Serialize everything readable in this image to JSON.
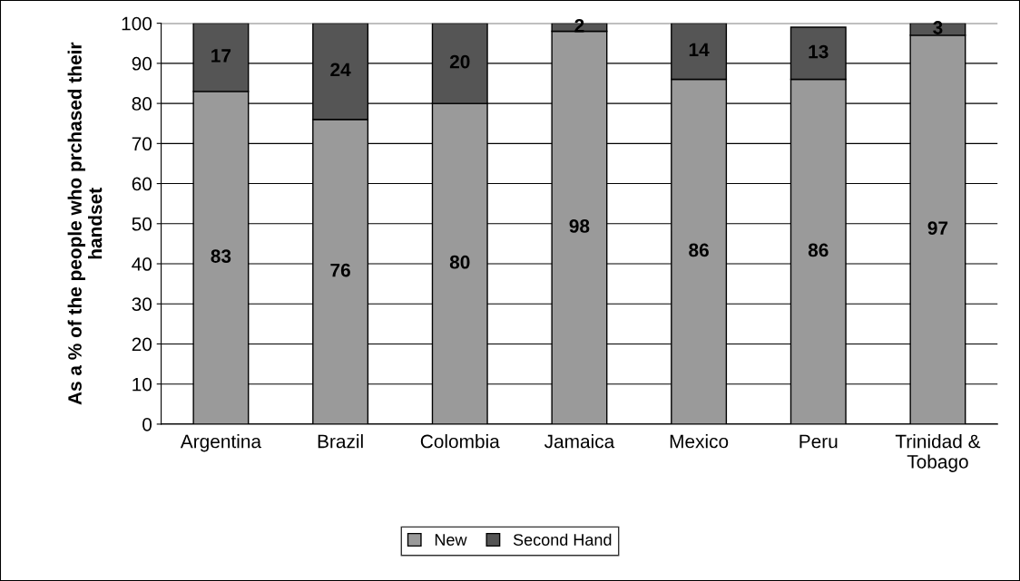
{
  "chart_data": {
    "type": "bar",
    "stacked": true,
    "ylabel": "As a % of the people who prchased their\nhandset",
    "categories": [
      "Argentina",
      "Brazil",
      "Colombia",
      "Jamaica",
      "Mexico",
      "Peru",
      "Trinidad &\nTobago"
    ],
    "series": [
      {
        "name": "New",
        "color": "#9a9a9a",
        "values": [
          83,
          76,
          80,
          98,
          86,
          86,
          97
        ]
      },
      {
        "name": "Second Hand",
        "color": "#555555",
        "values": [
          17,
          24,
          20,
          2,
          14,
          13,
          3
        ]
      }
    ],
    "ylim": [
      0,
      100
    ],
    "yticks": [
      0,
      10,
      20,
      30,
      40,
      50,
      60,
      70,
      80,
      90,
      100
    ],
    "grid": "y",
    "legend": "bottom",
    "data_labels": true
  }
}
